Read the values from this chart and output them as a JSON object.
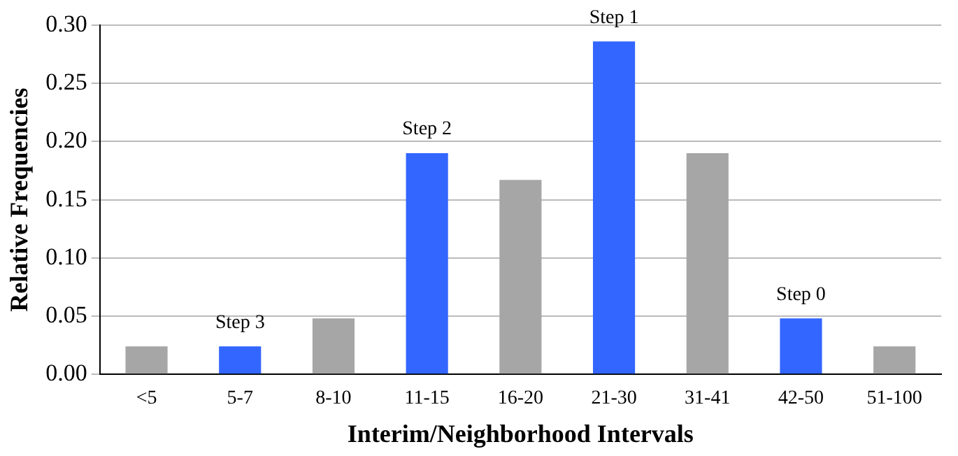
{
  "chart_data": {
    "type": "bar",
    "xlabel": "Interim/Neighborhood Intervals",
    "ylabel": "Relative Frequencies",
    "categories": [
      "<5",
      "5-7",
      "8-10",
      "11-15",
      "16-20",
      "21-30",
      "31-41",
      "42-50",
      "51-100"
    ],
    "values": [
      0.024,
      0.024,
      0.048,
      0.19,
      0.167,
      0.286,
      0.19,
      0.048,
      0.024
    ],
    "colors": [
      "#a6a6a6",
      "#3366ff",
      "#a6a6a6",
      "#3366ff",
      "#a6a6a6",
      "#3366ff",
      "#a6a6a6",
      "#3366ff",
      "#a6a6a6"
    ],
    "ylim": [
      0,
      0.3
    ],
    "yticks": [
      {
        "value": 0,
        "label": "0.00"
      },
      {
        "value": 0.05,
        "label": "0.05"
      },
      {
        "value": 0.1,
        "label": "0.10"
      },
      {
        "value": 0.15,
        "label": "0.15"
      },
      {
        "value": 0.2,
        "label": "0.20"
      },
      {
        "value": 0.25,
        "label": "0.25"
      },
      {
        "value": 0.3,
        "label": "0.30"
      }
    ],
    "annotations": [
      {
        "text": "Step 3",
        "x": "5-7",
        "y": 0.024
      },
      {
        "text": "Step 2",
        "x": "11-15",
        "y": 0.19
      },
      {
        "text": "Step 1",
        "x": "21-30",
        "y": 0.286
      },
      {
        "text": "Step 0",
        "x": "42-50",
        "y": 0.048
      }
    ],
    "grid": "y",
    "legend": false
  }
}
